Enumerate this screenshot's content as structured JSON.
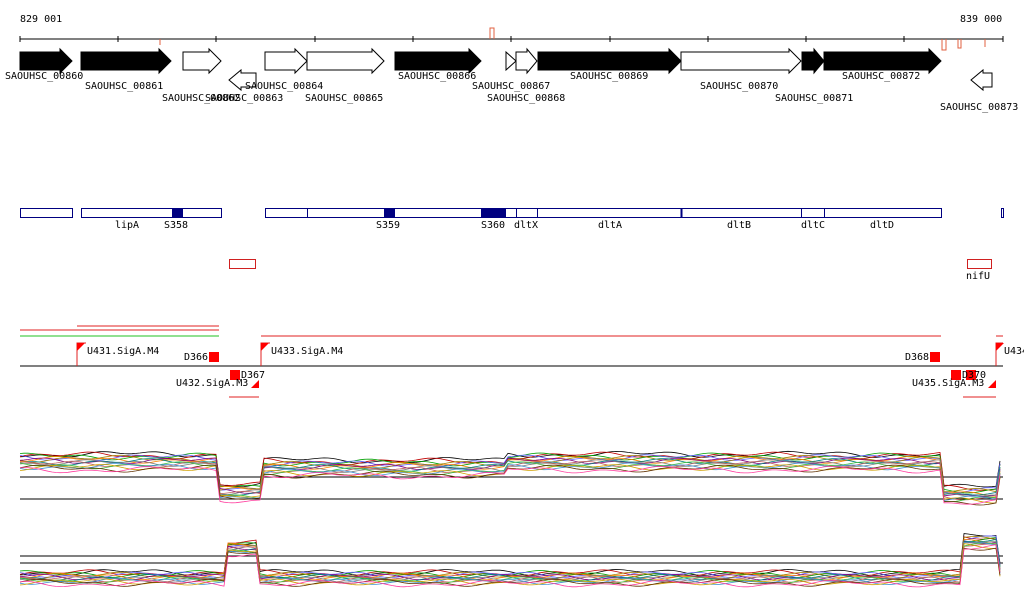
{
  "ruler": {
    "start": "829 001",
    "end": "839 000"
  },
  "genes": [
    "SAOUHSC_00860",
    "SAOUHSC_00861",
    "SAOUHSC_00862",
    "SAOUHSC_00863",
    "SAOUHSC_00864",
    "SAOUHSC_00865",
    "SAOUHSC_00866",
    "SAOUHSC_00867",
    "SAOUHSC_00868",
    "SAOUHSC_00869",
    "SAOUHSC_00870",
    "SAOUHSC_00871",
    "SAOUHSC_00872",
    "SAOUHSC_00873"
  ],
  "features": [
    "lipA",
    "S358",
    "S359",
    "S360",
    "dltX",
    "dltA",
    "dltB",
    "dltC",
    "dltD",
    "nifU"
  ],
  "promoters": [
    "U431.SigA.M4",
    "D366",
    "U432.SigA.M3",
    "D367",
    "U433.SigA.M4",
    "D368",
    "U435.SigA.M3",
    "D370",
    "U434"
  ]
}
